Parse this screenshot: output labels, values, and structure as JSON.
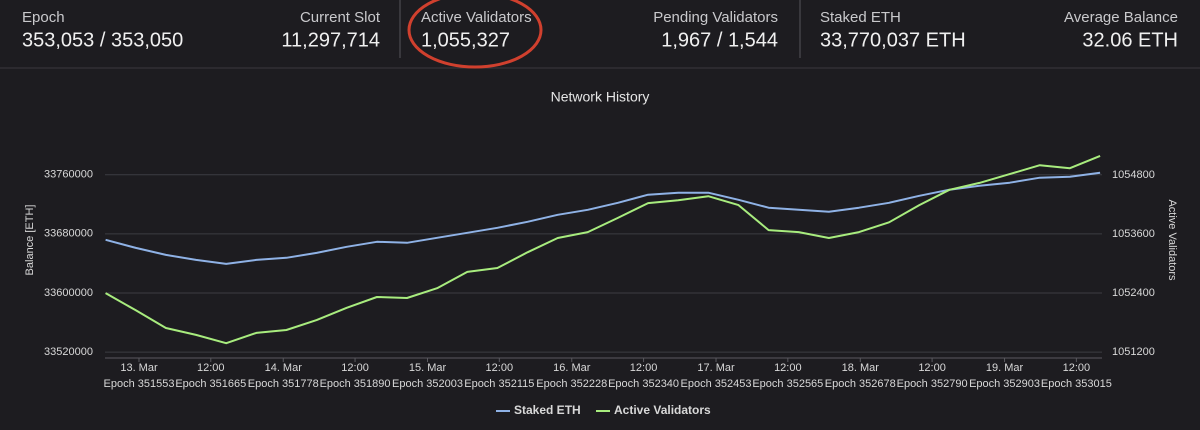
{
  "header": {
    "stats": [
      {
        "label": "Epoch",
        "value": "353,053 / 353,050"
      },
      {
        "label": "Current Slot",
        "value": "11,297,714"
      },
      {
        "label": "Active Validators",
        "value": "1,055,327"
      },
      {
        "label": "Pending Validators",
        "value": "1,967 / 1,544"
      },
      {
        "label": "Staked ETH",
        "value": "33,770,037 ETH"
      },
      {
        "label": "Average Balance",
        "value": "32.06 ETH"
      }
    ]
  },
  "chart_data": {
    "type": "line",
    "title": "Network History",
    "y_label": "Balance [ETH]",
    "y2_label": "Active Validators",
    "x": [
      351501,
      351548,
      351595,
      351642,
      351689,
      351736,
      351783,
      351830,
      351877,
      351924,
      351971,
      352018,
      352065,
      352112,
      352159,
      352206,
      352253,
      352300,
      352347,
      352394,
      352441,
      352488,
      352535,
      352582,
      352629,
      352676,
      352723,
      352770,
      352817,
      352864,
      352911,
      352958,
      353005,
      353052
    ],
    "xlim": [
      351500,
      353055
    ],
    "xticks": [
      {
        "value": 351553,
        "label": "Epoch 351553"
      },
      {
        "value": 351665,
        "label": "Epoch 351665"
      },
      {
        "value": 351778,
        "label": "Epoch 351778"
      },
      {
        "value": 351890,
        "label": "Epoch 351890"
      },
      {
        "value": 352003,
        "label": "Epoch 352003"
      },
      {
        "value": 352115,
        "label": "Epoch 352115"
      },
      {
        "value": 352228,
        "label": "Epoch 352228"
      },
      {
        "value": 352340,
        "label": "Epoch 352340"
      },
      {
        "value": 352453,
        "label": "Epoch 352453"
      },
      {
        "value": 352565,
        "label": "Epoch 352565"
      },
      {
        "value": 352678,
        "label": "Epoch 352678"
      },
      {
        "value": 352790,
        "label": "Epoch 352790"
      },
      {
        "value": 352903,
        "label": "Epoch 352903"
      },
      {
        "value": 353015,
        "label": "Epoch 353015"
      }
    ],
    "xtick_dates": [
      "13. Mar",
      "12:00",
      "14. Mar",
      "12:00",
      "15. Mar",
      "12:00",
      "16. Mar",
      "12:00",
      "17. Mar",
      "12:00",
      "18. Mar",
      "12:00",
      "19. Mar",
      "12:00"
    ],
    "ylim": [
      33512000,
      33834000
    ],
    "yticks": [
      33520000,
      33600000,
      33680000,
      33760000
    ],
    "y2lim": [
      1051080,
      1055920
    ],
    "y2ticks": [
      1051200,
      1052400,
      1053600,
      1054800
    ],
    "grid": true,
    "legend": "bottom",
    "series": [
      {
        "name": "Staked ETH",
        "color": "#8fb2e6",
        "values": [
          33671900,
          33661000,
          33651500,
          33644700,
          33639300,
          33644700,
          33647500,
          33654200,
          33662400,
          33669200,
          33667800,
          33674600,
          33681400,
          33688100,
          33696300,
          33705800,
          33712500,
          33722000,
          33732900,
          33735600,
          33735600,
          33726100,
          33715300,
          33712500,
          33709800,
          33715300,
          33722000,
          33731500,
          33739700,
          33745100,
          33749200,
          33755900,
          33757300,
          33762700
        ]
      },
      {
        "name": "Active Validators",
        "color": "#a8ec7e",
        "axis": "y2",
        "values": [
          1052400,
          1052050,
          1051690,
          1051550,
          1051380,
          1051590,
          1051650,
          1051850,
          1052100,
          1052320,
          1052300,
          1052500,
          1052830,
          1052910,
          1053230,
          1053520,
          1053640,
          1053930,
          1054230,
          1054290,
          1054370,
          1054190,
          1053680,
          1053640,
          1053520,
          1053640,
          1053840,
          1054190,
          1054500,
          1054640,
          1054820,
          1055000,
          1054940,
          1055190
        ]
      }
    ]
  }
}
